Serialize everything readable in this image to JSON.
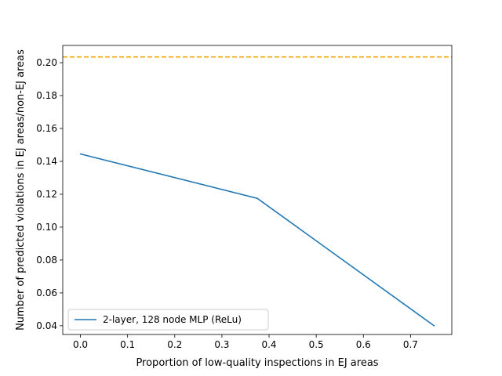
{
  "chart_data": {
    "type": "line",
    "title": "",
    "xlabel": "Proportion of low-quality inspections in EJ areas",
    "ylabel": "Number of predicted violations in EJ areas/non-EJ areas",
    "xlim": [
      -0.0375,
      0.7875
    ],
    "ylim": [
      0.0347,
      0.2105
    ],
    "xticks": [
      0.0,
      0.1,
      0.2,
      0.3,
      0.4,
      0.5,
      0.6,
      0.7
    ],
    "xtick_labels": [
      "0.0",
      "0.1",
      "0.2",
      "0.3",
      "0.4",
      "0.5",
      "0.6",
      "0.7"
    ],
    "yticks": [
      0.04,
      0.06,
      0.08,
      0.1,
      0.12,
      0.14,
      0.16,
      0.18,
      0.2
    ],
    "ytick_labels": [
      "0.04",
      "0.06",
      "0.08",
      "0.10",
      "0.12",
      "0.14",
      "0.16",
      "0.18",
      "0.20"
    ],
    "grid": false,
    "legend_position": "lower-left",
    "series": [
      {
        "name": "2-layer, 128 node MLP (ReLu)",
        "color": "#1f77b4",
        "x": [
          0.0,
          0.375,
          0.75
        ],
        "y": [
          0.1445,
          0.1175,
          0.04
        ]
      }
    ],
    "reference_lines": [
      {
        "orientation": "horizontal",
        "y": 0.2035,
        "color": "#f0a500",
        "style": "dashed"
      }
    ]
  }
}
